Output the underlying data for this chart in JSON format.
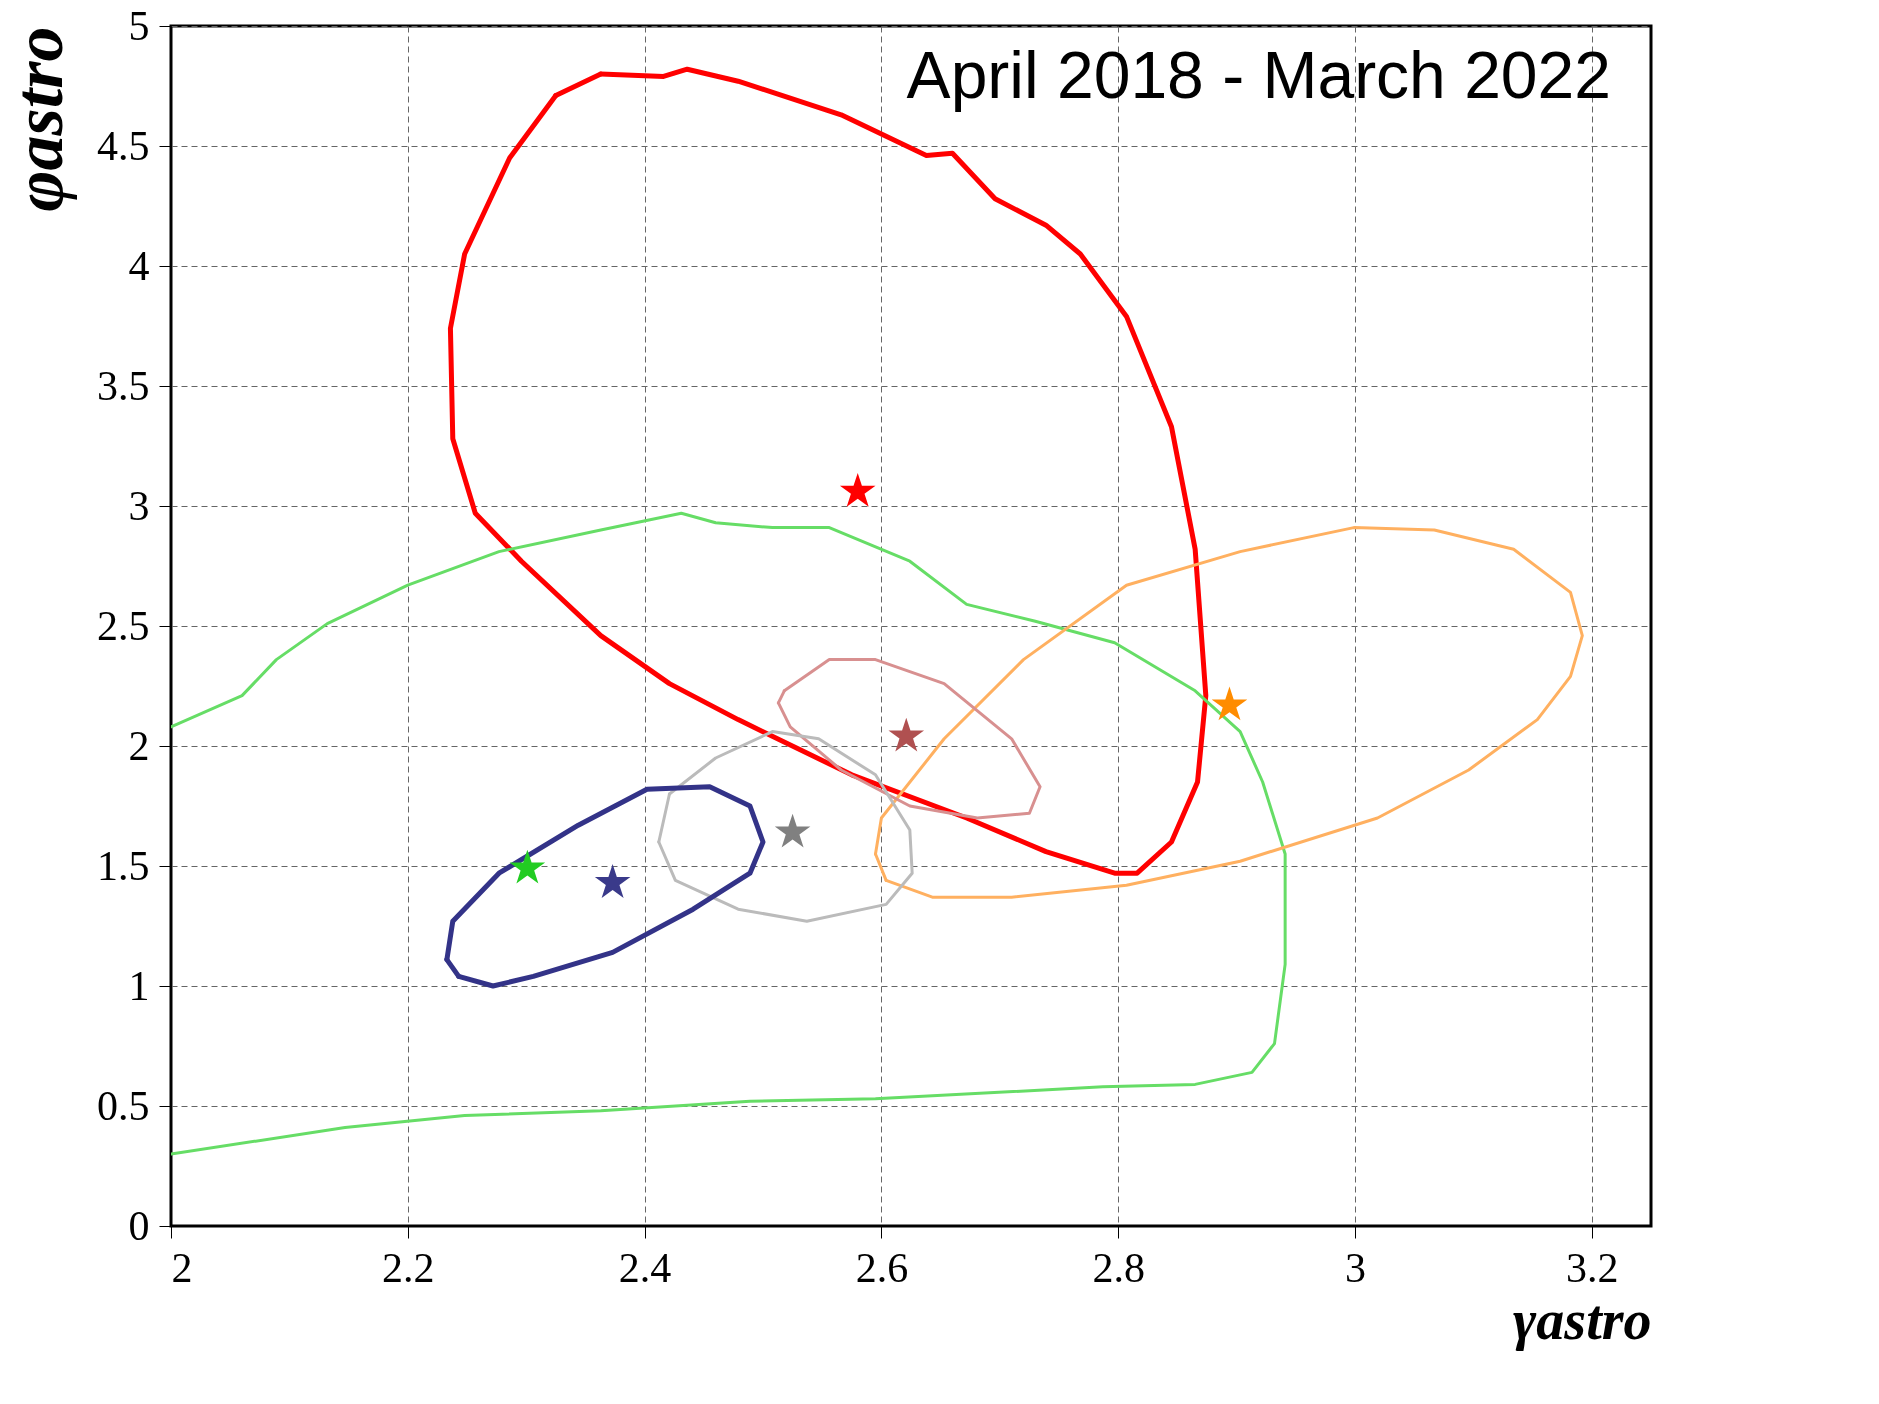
{
  "chart_data": {
    "type": "line",
    "xlabel": "γastro",
    "ylabel": "φastro",
    "annotations": [
      "April 2018 - March 2022"
    ],
    "xlim": [
      2,
      3.25
    ],
    "ylim": [
      0,
      5
    ],
    "xticks": [
      2,
      2.2,
      2.4,
      2.6,
      2.8,
      3,
      3.2
    ],
    "yticks": [
      0,
      0.5,
      1,
      1.5,
      2,
      2.5,
      3,
      3.5,
      4,
      4.5,
      5
    ],
    "grid": true,
    "line_style": "solid",
    "series": [
      {
        "color": "#ff0000",
        "x": [
          2.363,
          2.416,
          2.436,
          2.479,
          2.566,
          2.638,
          2.66,
          2.696,
          2.739,
          2.768,
          2.807,
          2.845,
          2.865,
          2.874,
          2.867,
          2.845,
          2.816,
          2.797,
          2.739,
          2.672,
          2.575,
          2.479,
          2.421,
          2.363,
          2.296,
          2.257,
          2.238,
          2.236,
          2.248,
          2.286,
          2.325
        ],
        "values": [
          4.8,
          4.79,
          4.82,
          4.77,
          4.63,
          4.46,
          4.47,
          4.28,
          4.17,
          4.05,
          3.79,
          3.33,
          2.82,
          2.21,
          1.85,
          1.6,
          1.47,
          1.47,
          1.56,
          1.7,
          1.88,
          2.11,
          2.26,
          2.46,
          2.77,
          2.97,
          3.28,
          3.74,
          4.05,
          4.45,
          4.71
        ]
      },
      {
        "color": "#66dd66",
        "x": [
          2.0,
          2.06,
          2.089,
          2.132,
          2.2,
          2.277,
          2.363,
          2.431,
          2.46,
          2.508,
          2.556,
          2.624,
          2.672,
          2.73,
          2.797,
          2.865,
          2.903,
          2.922,
          2.941,
          2.941,
          2.932,
          2.913,
          2.865,
          2.787,
          2.595,
          2.489,
          2.363,
          2.248,
          2.147,
          2.0
        ],
        "values": [
          2.08,
          2.21,
          2.36,
          2.51,
          2.67,
          2.81,
          2.9,
          2.97,
          2.93,
          2.91,
          2.91,
          2.77,
          2.59,
          2.52,
          2.43,
          2.23,
          2.06,
          1.85,
          1.55,
          1.09,
          0.76,
          0.64,
          0.59,
          0.58,
          0.53,
          0.52,
          0.48,
          0.46,
          0.41,
          0.3
        ]
      },
      {
        "color": "#ffb060",
        "x": [
          2.595,
          2.6,
          2.653,
          2.72,
          2.807,
          2.903,
          2.999,
          3.067,
          3.134,
          3.182,
          3.192,
          3.182,
          3.154,
          3.096,
          3.019,
          2.903,
          2.807,
          2.71,
          2.643,
          2.604
        ],
        "values": [
          1.55,
          1.7,
          2.03,
          2.36,
          2.67,
          2.81,
          2.91,
          2.9,
          2.82,
          2.64,
          2.46,
          2.29,
          2.11,
          1.9,
          1.7,
          1.52,
          1.42,
          1.37,
          1.37,
          1.44
        ]
      },
      {
        "color": "#d89090",
        "x": [
          2.518,
          2.556,
          2.595,
          2.653,
          2.71,
          2.734,
          2.725,
          2.681,
          2.624,
          2.566,
          2.523,
          2.513
        ],
        "values": [
          2.23,
          2.36,
          2.36,
          2.26,
          2.03,
          1.83,
          1.72,
          1.7,
          1.75,
          1.9,
          2.08,
          2.18
        ]
      },
      {
        "color": "#bbbbbb",
        "x": [
          2.421,
          2.46,
          2.508,
          2.547,
          2.595,
          2.624,
          2.626,
          2.604,
          2.537,
          2.479,
          2.426,
          2.412
        ],
        "values": [
          1.8,
          1.95,
          2.06,
          2.03,
          1.88,
          1.65,
          1.47,
          1.34,
          1.27,
          1.32,
          1.44,
          1.6
        ]
      },
      {
        "color": "#333388",
        "x": [
          2.233,
          2.238,
          2.277,
          2.344,
          2.402,
          2.455,
          2.489,
          2.5,
          2.489,
          2.441,
          2.373,
          2.306,
          2.272,
          2.243
        ],
        "values": [
          1.11,
          1.27,
          1.47,
          1.67,
          1.82,
          1.83,
          1.75,
          1.6,
          1.47,
          1.32,
          1.14,
          1.04,
          1.0,
          1.04
        ]
      },
      {
        "color": "#ff0000",
        "x": [
          2.325,
          2.363
        ],
        "values": [
          4.71,
          4.8
        ]
      },
      {
        "color": "#ffb060",
        "x": [
          2.604,
          2.595
        ],
        "values": [
          1.44,
          1.55
        ]
      },
      {
        "color": "#d89090",
        "x": [
          2.513,
          2.518
        ],
        "values": [
          2.18,
          2.23
        ]
      },
      {
        "color": "#bbbbbb",
        "x": [
          2.412,
          2.421
        ],
        "values": [
          1.6,
          1.8
        ]
      },
      {
        "color": "#333388",
        "x": [
          2.243,
          2.233
        ],
        "values": [
          1.04,
          1.11
        ]
      },
      {
        "type": "scatter",
        "marker": "star",
        "color": "#ff0000",
        "x": [
          2.58
        ],
        "values": [
          3.06
        ]
      },
      {
        "type": "scatter",
        "marker": "star",
        "color": "#b05050",
        "x": [
          2.621
        ],
        "values": [
          2.04
        ]
      },
      {
        "type": "scatter",
        "marker": "star",
        "color": "#808080",
        "x": [
          2.525
        ],
        "values": [
          1.64
        ]
      },
      {
        "type": "scatter",
        "marker": "star",
        "color": "#ff8c00",
        "x": [
          2.894
        ],
        "values": [
          2.17
        ]
      },
      {
        "type": "scatter",
        "marker": "star",
        "color": "#22cc22",
        "x": [
          2.301
        ],
        "values": [
          1.49
        ]
      },
      {
        "type": "scatter",
        "marker": "star",
        "color": "#3a3a8a",
        "x": [
          2.373
        ],
        "values": [
          1.43
        ]
      }
    ]
  }
}
